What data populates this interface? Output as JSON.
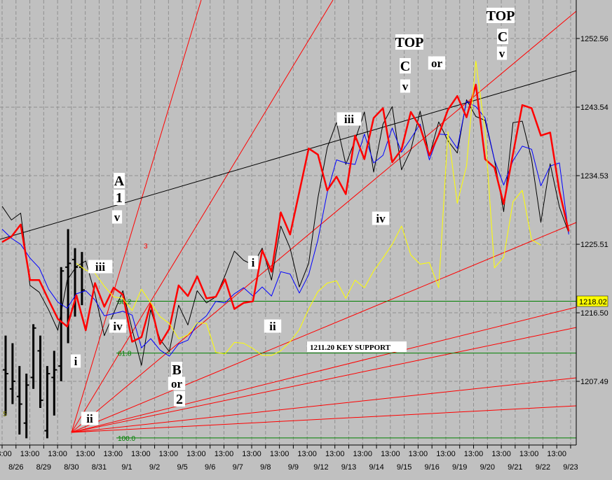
{
  "chart_data": {
    "type": "line",
    "title": "",
    "xlabel": "",
    "ylabel": "",
    "ylim": [
      1198.5,
      1258.9
    ],
    "y_ticks": [
      "1252.56",
      "1243.54",
      "1234.53",
      "1225.51",
      "1216.50",
      "1207.49"
    ],
    "x_ticks": [
      "13:00",
      "8/26",
      "13:00",
      "8/29",
      "13:00",
      "8/30",
      "13:00",
      "8/31",
      "13:00",
      "9/1",
      "13:00",
      "9/2",
      "13:00",
      "9/5",
      "13:00",
      "9/6",
      "13:00",
      "9/7",
      "13:00",
      "9/8",
      "13:00",
      "9/9",
      "13:00",
      "9/12",
      "13:00",
      "9/13",
      "13:00",
      "9/14",
      "13:00",
      "9/15",
      "13:00",
      "9/16",
      "13:00",
      "9/19",
      "13:00",
      "9/20",
      "13:00",
      "9/21",
      "13:00",
      "9/22",
      "13:00",
      "9/23"
    ],
    "price_tag": "1218.02",
    "grid": true,
    "horizontal_levels": [
      {
        "value": 1218.02,
        "label": "38.2",
        "color": "#008000"
      },
      {
        "value": 1211.2,
        "label": "61.8",
        "color": "#008000"
      },
      {
        "value": 1200.05,
        "label": "100.0",
        "color": "#008000"
      }
    ],
    "support_label": "1211.20 KEY SUPPORT",
    "small_labels": [
      {
        "text": "3",
        "color": "#ff0000"
      },
      {
        "text": "5",
        "color": "#808000"
      }
    ],
    "series": [
      {
        "name": "",
        "color": "#000000",
        "values": [
          1230.5,
          1228.7,
          1229.6,
          1220.1,
          1219.2,
          1216.9,
          1214.2,
          1220.8,
          1222.6,
          1223.3,
          1219.0,
          1213.5,
          1216.4,
          1219.4,
          1214.3,
          1209.6,
          1216.9,
          1213.0,
          1211.4,
          1217.5,
          1214.9,
          1219.4,
          1217.8,
          1218.6,
          1221.4,
          1224.6,
          1223.4,
          1222.8,
          1225.0,
          1220.8,
          1227.9,
          1225.0,
          1219.9,
          1223.0,
          1231.6,
          1238.2,
          1241.5,
          1236.0,
          1239.2,
          1242.9,
          1235.0,
          1241.3,
          1243.6,
          1235.3,
          1237.9,
          1243.0,
          1237.1,
          1241.6,
          1239.1,
          1237.5,
          1244.5,
          1242.3,
          1241.8,
          1236.6,
          1229.8,
          1241.5,
          1241.7,
          1236.7,
          1228.4,
          1236.1,
          1230.4,
          1227.0
        ]
      },
      {
        "name": "",
        "color": "#0000ff",
        "values": [
          1227.5,
          1226.3,
          1225.5,
          1223.7,
          1222.4,
          1219.6,
          1217.9,
          1217.1,
          1219.0,
          1219.4,
          1218.2,
          1216.1,
          1216.4,
          1216.7,
          1216.2,
          1211.9,
          1213.1,
          1211.6,
          1210.8,
          1212.4,
          1212.9,
          1215.1,
          1216.1,
          1218.0,
          1217.8,
          1219.0,
          1219.8,
          1218.7,
          1219.9,
          1218.7,
          1221.9,
          1221.6,
          1219.1,
          1221.5,
          1226.1,
          1232.3,
          1236.6,
          1236.2,
          1236.0,
          1240.0,
          1236.2,
          1237.2,
          1240.8,
          1237.6,
          1239.4,
          1241.3,
          1236.6,
          1240.0,
          1239.9,
          1238.1,
          1244.3,
          1243.6,
          1242.1,
          1236.6,
          1233.3,
          1236.5,
          1238.4,
          1238.0,
          1233.2,
          1235.8,
          1236.2,
          1226.8
        ]
      },
      {
        "name": "",
        "color": "#ff0000",
        "values": [
          1225.8,
          1226.5,
          1228.1,
          1220.8,
          1220.8,
          1218.2,
          1215.7,
          1214.7,
          1218.8,
          1214.2,
          1220.4,
          1217.3,
          1219.8,
          1218.9,
          1212.7,
          1213.3,
          1217.7,
          1212.4,
          1214.4,
          1220.1,
          1218.7,
          1221.3,
          1218.4,
          1218.6,
          1220.9,
          1217.0,
          1217.8,
          1218.0,
          1224.7,
          1221.9,
          1229.7,
          1226.8,
          1232.4,
          1238.1,
          1237.3,
          1232.6,
          1234.4,
          1232.1,
          1239.8,
          1236.7,
          1242.1,
          1243.4,
          1236.3,
          1238.0,
          1242.9,
          1240.9,
          1237.2,
          1239.9,
          1243.2,
          1245.0,
          1242.2,
          1246.5,
          1236.7,
          1235.6,
          1230.8,
          1237.4,
          1243.8,
          1243.4,
          1239.8,
          1240.2,
          1232.5,
          1227.2
        ]
      },
      {
        "name": "",
        "color": "#ffff00",
        "values": [
          1223.0,
          1222.1,
          1221.7,
          1220.0,
          1218.6,
          1218.4,
          1216.8,
          1219.6,
          1217.8,
          1216.0,
          1215.1,
          1213.1,
          1213.6,
          1215.2,
          1215.1,
          1211.3,
          1211.1,
          1212.6,
          1212.5,
          1211.8,
          1210.9,
          1210.9,
          1211.5,
          1212.7,
          1214.3,
          1217.0,
          1219.3,
          1220.4,
          1220.7,
          1218.4,
          1220.8,
          1219.8,
          1222.0,
          1223.7,
          1225.5,
          1227.9,
          1224.1,
          1222.9,
          1223.1,
          1219.8,
          1240.3,
          1230.9,
          1235.8,
          1249.6,
          1240.3,
          1222.4,
          1223.8,
          1231.1,
          1232.6,
          1226.1,
          1225.4
        ]
      }
    ],
    "bars": [
      {
        "x": 0,
        "high": 1213.5,
        "low": 1203.0,
        "open": 1209.0,
        "close": 1208.5
      },
      {
        "x": 1,
        "high": 1212.5,
        "low": 1204.5,
        "open": 1206.5,
        "close": 1207.5
      },
      {
        "x": 2,
        "high": 1209.5,
        "low": 1200.5,
        "open": 1205.5,
        "close": 1204.5
      },
      {
        "x": 3,
        "high": 1208.5,
        "low": 1200.0,
        "open": 1202.0,
        "close": 1207.0
      },
      {
        "x": 4,
        "high": 1215.0,
        "low": 1206.5,
        "open": 1208.0,
        "close": 1214.5
      },
      {
        "x": 5,
        "high": 1213.5,
        "low": 1204.0,
        "open": 1211.5,
        "close": 1205.0
      },
      {
        "x": 6,
        "high": 1209.5,
        "low": 1200.0,
        "open": 1201.0,
        "close": 1208.5
      },
      {
        "x": 7,
        "high": 1211.5,
        "low": 1203.0,
        "open": 1208.0,
        "close": 1209.0
      },
      {
        "x": 8,
        "high": 1222.5,
        "low": 1207.5,
        "open": 1209.5,
        "close": 1222.0
      },
      {
        "x": 9,
        "high": 1227.5,
        "low": 1212.5,
        "open": 1222.5,
        "close": 1223.0
      },
      {
        "x": 10,
        "high": 1225.0,
        "low": 1216.0,
        "open": 1223.5,
        "close": 1222.5
      },
      {
        "x": 11,
        "high": 1224.5,
        "low": 1217.5,
        "open": 1222.5,
        "close": 1219.5
      }
    ],
    "annotations": [
      {
        "text": "A",
        "size": 20
      },
      {
        "text": "1",
        "size": 20
      },
      {
        "text": "v",
        "size": 17
      },
      {
        "text": "iii",
        "size": 17
      },
      {
        "text": "iv",
        "size": 17
      },
      {
        "text": "i",
        "size": 17
      },
      {
        "text": "ii",
        "size": 17
      },
      {
        "text": "B",
        "size": 20
      },
      {
        "text": "or",
        "size": 17
      },
      {
        "text": "2",
        "size": 20
      },
      {
        "text": "i",
        "size": 17
      },
      {
        "text": "ii",
        "size": 17
      },
      {
        "text": "iii",
        "size": 17
      },
      {
        "text": "iv",
        "size": 17
      },
      {
        "text": "TOP",
        "size": 20
      },
      {
        "text": "C",
        "size": 20
      },
      {
        "text": "v",
        "size": 17
      },
      {
        "text": "or",
        "size": 17
      },
      {
        "text": "TOP",
        "size": 20
      },
      {
        "text": "C",
        "size": 20
      },
      {
        "text": "v",
        "size": 17
      }
    ]
  }
}
